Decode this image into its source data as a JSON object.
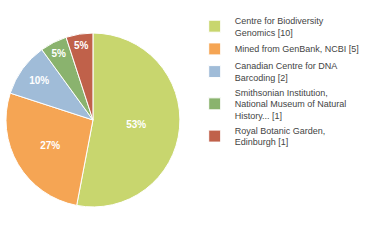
{
  "chart_data": {
    "type": "pie",
    "categories": [
      "Centre for Biodiversity\nGenomics [10]",
      "Mined from GenBank, NCBI [5]",
      "Canadian Centre for DNA\nBarcoding [2]",
      "Smithsonian Institution,\nNational Museum of Natural\nHistory... [1]",
      "Royal Botanic Garden,\nEdinburgh [1]"
    ],
    "values": [
      53,
      27,
      10,
      5,
      5
    ],
    "value_labels": [
      "53%",
      "27%",
      "10%",
      "5%",
      "5%"
    ],
    "colors": [
      "#c8d66e",
      "#f5a554",
      "#a0bcd8",
      "#8ab36e",
      "#c0614a"
    ],
    "data_labels": true,
    "legend": "right"
  }
}
